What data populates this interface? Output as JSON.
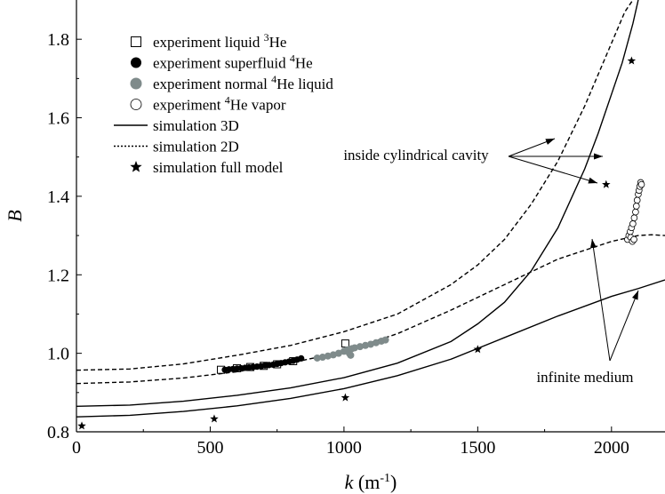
{
  "chart_data": {
    "type": "scatter",
    "xlabel": {
      "var": "k",
      "unit": "(m",
      "sup": "-1",
      "close": ")"
    },
    "ylabel": "B",
    "xlim": [
      0,
      2200
    ],
    "ylim": [
      0.8,
      1.9
    ],
    "x_ticks": [
      0,
      500,
      1000,
      1500,
      2000
    ],
    "x_tick_labels": [
      "0",
      "500",
      "1000",
      "1500",
      "2000"
    ],
    "y_ticks": [
      0.8,
      1.0,
      1.2,
      1.4,
      1.6,
      1.8
    ],
    "y_tick_labels": [
      "0.8",
      "1.0",
      "1.2",
      "1.4",
      "1.6",
      "1.8"
    ],
    "legend": [
      {
        "marker": "open-square",
        "pre": "experiment liquid ",
        "sup": "3",
        "post": "He"
      },
      {
        "marker": "filled-circle",
        "pre": "experiment superfluid ",
        "sup": "4",
        "post": "He"
      },
      {
        "marker": "gray-circle",
        "pre": "experiment normal ",
        "sup": "4",
        "post": "He liquid"
      },
      {
        "marker": "open-circle",
        "pre": "experiment ",
        "sup": "4",
        "post": "He vapor"
      },
      {
        "marker": "solid-line",
        "pre": "simulation 3D",
        "sup": "",
        "post": ""
      },
      {
        "marker": "dotted-line",
        "pre": "simulation 2D",
        "sup": "",
        "post": ""
      },
      {
        "marker": "star",
        "pre": "simulation full model",
        "sup": "",
        "post": ""
      }
    ],
    "annotations": {
      "cavity": "inside cylindrical cavity",
      "infinite": "infinite medium"
    },
    "series": [
      {
        "name": "simulation 3D cavity",
        "style": "solid",
        "x": [
          0,
          200,
          400,
          600,
          800,
          1000,
          1200,
          1400,
          1500,
          1600,
          1700,
          1800,
          1900,
          1950,
          2000,
          2040,
          2080,
          2100
        ],
        "y": [
          0.865,
          0.868,
          0.878,
          0.893,
          0.912,
          0.938,
          0.975,
          1.03,
          1.075,
          1.13,
          1.21,
          1.32,
          1.47,
          1.56,
          1.66,
          1.74,
          1.84,
          1.9
        ]
      },
      {
        "name": "simulation 3D infinite",
        "style": "solid",
        "x": [
          0,
          200,
          400,
          600,
          800,
          1000,
          1200,
          1400,
          1600,
          1800,
          2000,
          2100,
          2200
        ],
        "y": [
          0.838,
          0.842,
          0.852,
          0.866,
          0.885,
          0.91,
          0.943,
          0.985,
          1.04,
          1.095,
          1.145,
          1.165,
          1.187
        ]
      },
      {
        "name": "simulation 2D cavity",
        "style": "dashed",
        "x": [
          0,
          200,
          400,
          600,
          800,
          1000,
          1200,
          1400,
          1500,
          1600,
          1700,
          1800,
          1900,
          1950,
          2000,
          2050,
          2080
        ],
        "y": [
          0.957,
          0.96,
          0.973,
          0.995,
          1.02,
          1.055,
          1.1,
          1.175,
          1.225,
          1.29,
          1.38,
          1.49,
          1.63,
          1.71,
          1.79,
          1.87,
          1.9
        ]
      },
      {
        "name": "simulation 2D infinite",
        "style": "dashed",
        "x": [
          0,
          200,
          400,
          600,
          800,
          1000,
          1200,
          1400,
          1600,
          1800,
          2000,
          2100,
          2150,
          2200
        ],
        "y": [
          0.923,
          0.927,
          0.937,
          0.953,
          0.975,
          1.005,
          1.05,
          1.11,
          1.175,
          1.24,
          1.285,
          1.3,
          1.302,
          1.3
        ]
      },
      {
        "name": "experiment liquid 3He",
        "marker": "open-square",
        "x": [
          540,
          600,
          650,
          700,
          750,
          810,
          1005
        ],
        "y": [
          0.958,
          0.962,
          0.965,
          0.968,
          0.972,
          0.98,
          1.025
        ]
      },
      {
        "name": "experiment superfluid 4He",
        "marker": "filled-circle",
        "x": [
          555,
          570,
          585,
          600,
          615,
          630,
          645,
          660,
          675,
          690,
          705,
          720,
          735,
          750,
          765,
          780,
          795,
          810,
          825,
          840
        ],
        "y": [
          0.958,
          0.959,
          0.96,
          0.961,
          0.962,
          0.963,
          0.964,
          0.965,
          0.966,
          0.967,
          0.969,
          0.97,
          0.971,
          0.973,
          0.975,
          0.977,
          0.979,
          0.981,
          0.984,
          0.987
        ]
      },
      {
        "name": "experiment normal 4He liquid",
        "marker": "gray-circle",
        "x": [
          900,
          920,
          940,
          960,
          980,
          1000,
          1010,
          1020,
          1030,
          1040,
          1060,
          1080,
          1100,
          1120,
          1140,
          1155,
          1020,
          1025
        ],
        "y": [
          0.988,
          0.99,
          0.993,
          0.996,
          1.0,
          1.005,
          1.008,
          1.01,
          1.012,
          1.014,
          1.017,
          1.02,
          1.023,
          1.027,
          1.031,
          1.034,
          1.0,
          0.995
        ]
      },
      {
        "name": "experiment 4He vapor",
        "marker": "open-circle",
        "x": [
          2060,
          2065,
          2070,
          2075,
          2080,
          2085,
          2090,
          2093,
          2096,
          2100,
          2103,
          2106,
          2109,
          2112,
          2072,
          2078,
          2084
        ],
        "y": [
          1.29,
          1.3,
          1.31,
          1.32,
          1.33,
          1.345,
          1.36,
          1.375,
          1.39,
          1.405,
          1.415,
          1.425,
          1.435,
          1.43,
          1.295,
          1.285,
          1.29
        ]
      },
      {
        "name": "simulation full model",
        "marker": "star",
        "x": [
          20,
          515,
          1005,
          1500,
          1980,
          2075
        ],
        "y": [
          0.815,
          0.833,
          0.887,
          1.01,
          1.43,
          1.745
        ]
      }
    ]
  }
}
